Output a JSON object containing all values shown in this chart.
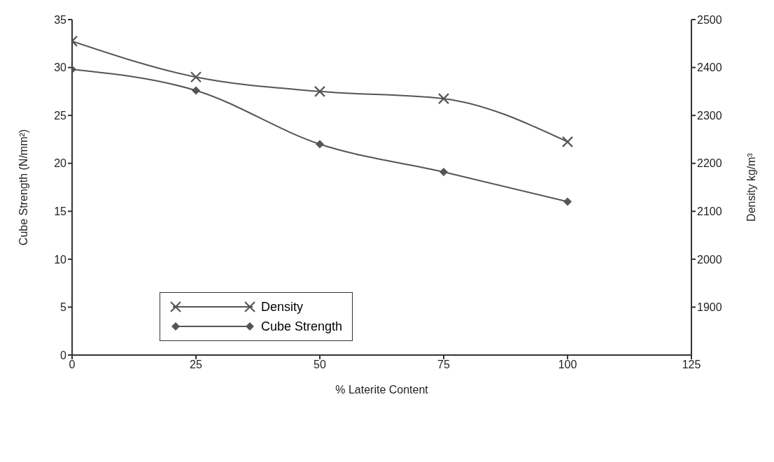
{
  "chart_data": {
    "type": "line",
    "xlabel": "% Laterite Content",
    "ylabel": "Cube Strength (N/mm²)",
    "y2label": "Density kg/m³",
    "x": [
      0,
      25,
      50,
      75,
      100
    ],
    "xlim": [
      0,
      125
    ],
    "xticks": [
      0,
      25,
      50,
      75,
      100,
      125
    ],
    "ylim": [
      0,
      35
    ],
    "yticks": [
      0,
      5,
      10,
      15,
      20,
      25,
      30,
      35
    ],
    "y2lim": [
      1800,
      2500
    ],
    "y2ticks": [
      1900,
      2000,
      2100,
      2200,
      2300,
      2400,
      2500
    ],
    "series": [
      {
        "name": "Density",
        "color": "#555555",
        "axis": "y2",
        "marker": "cross",
        "values": [
          2455,
          2380,
          2350,
          2335,
          2245
        ]
      },
      {
        "name": "Cube Strength",
        "color": "#555555",
        "axis": "y",
        "marker": "diamond",
        "values": [
          29.8,
          27.6,
          22.0,
          19.1,
          16.0
        ]
      }
    ],
    "grid": false,
    "legend": "bottom left",
    "line_style": "solid"
  }
}
